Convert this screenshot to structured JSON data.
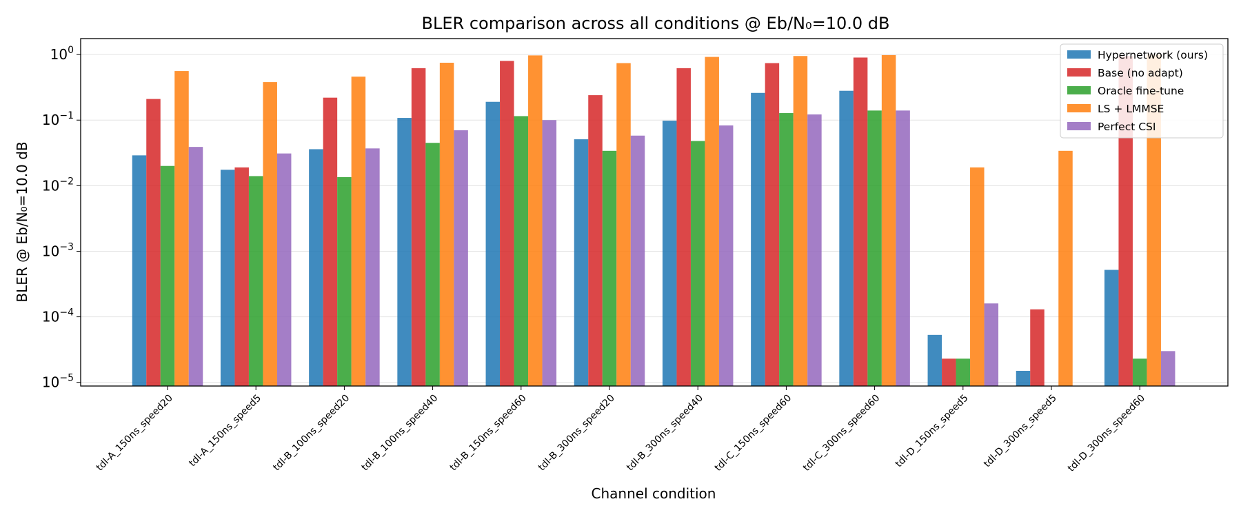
{
  "chart_data": {
    "type": "bar",
    "title": "BLER comparison across all conditions @ Eb/N₀=10.0 dB",
    "xlabel": "Channel condition",
    "ylabel": "BLER @ Eb/N₀=10.0 dB",
    "yscale": "log",
    "ylim": [
      8.8e-06,
      1.75
    ],
    "yticks": [
      {
        "value": 1,
        "base": "10",
        "exp": "0"
      },
      {
        "value": 0.1,
        "base": "10",
        "exp": "−1"
      },
      {
        "value": 0.01,
        "base": "10",
        "exp": "−2"
      },
      {
        "value": 0.001,
        "base": "10",
        "exp": "−3"
      },
      {
        "value": 0.0001,
        "base": "10",
        "exp": "−4"
      },
      {
        "value": 1e-05,
        "base": "10",
        "exp": "−5"
      }
    ],
    "grid": "y",
    "legend_position": "top-right",
    "categories": [
      "tdl-A_150ns_speed20",
      "tdl-A_150ns_speed5",
      "tdl-B_100ns_speed20",
      "tdl-B_100ns_speed40",
      "tdl-B_150ns_speed60",
      "tdl-B_300ns_speed20",
      "tdl-B_300ns_speed40",
      "tdl-C_150ns_speed60",
      "tdl-C_300ns_speed60",
      "tdl-D_150ns_speed5",
      "tdl-D_300ns_speed5",
      "tdl-D_300ns_speed60"
    ],
    "series": [
      {
        "name": "Hypernetwork (ours)",
        "color": "#1f77b4",
        "values": [
          0.029,
          0.0175,
          0.036,
          0.108,
          0.19,
          0.051,
          0.098,
          0.26,
          0.28,
          5.3e-05,
          1.5e-05,
          0.00052
        ]
      },
      {
        "name": "Base (no adapt)",
        "color": "#d62728",
        "values": [
          0.21,
          0.019,
          0.22,
          0.62,
          0.8,
          0.24,
          0.62,
          0.74,
          0.9,
          2.3e-05,
          0.00013,
          0.95
        ]
      },
      {
        "name": "Oracle fine-tune",
        "color": "#2ca02c",
        "values": [
          0.02,
          0.014,
          0.0135,
          0.045,
          0.115,
          0.034,
          0.048,
          0.128,
          0.14,
          2.3e-05,
          null,
          2.3e-05
        ]
      },
      {
        "name": "LS + LMMSE",
        "color": "#ff7f0e",
        "values": [
          0.56,
          0.38,
          0.46,
          0.75,
          0.97,
          0.74,
          0.92,
          0.95,
          0.98,
          0.019,
          0.034,
          1.0
        ]
      },
      {
        "name": "Perfect CSI",
        "color": "#9467bd",
        "values": [
          0.039,
          0.031,
          0.037,
          0.07,
          0.1,
          0.058,
          0.083,
          0.122,
          0.14,
          0.00016,
          null,
          3e-05
        ]
      }
    ]
  }
}
